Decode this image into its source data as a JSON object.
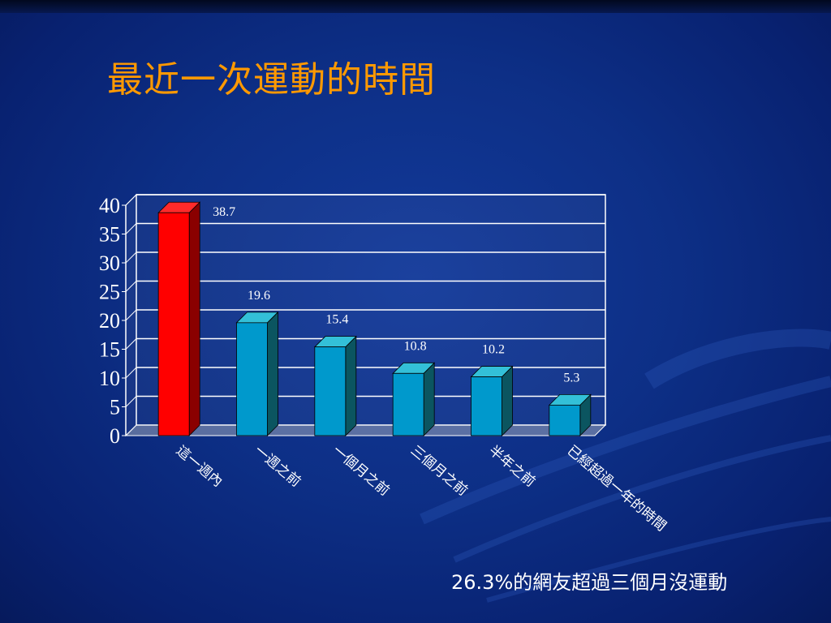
{
  "slide": {
    "title": "最近一次運動的時間",
    "caption": "26.3%的網友超過三個月沒運動"
  },
  "colors": {
    "background": "#0d2f86",
    "title": "#ff9900",
    "highlight_bar": "#ff0000",
    "normal_bar": "#0099cc"
  },
  "chart_data": {
    "type": "bar",
    "title": "",
    "xlabel": "",
    "ylabel": "",
    "ylim": [
      0,
      40
    ],
    "yticks": [
      0,
      5,
      10,
      15,
      20,
      25,
      30,
      35,
      40
    ],
    "categories": [
      "這一週內",
      "一週之前",
      "一個月之前",
      "三個月之前",
      "半年之前",
      "已經超過一年的時間"
    ],
    "values": [
      38.7,
      19.6,
      15.4,
      10.8,
      10.2,
      5.3
    ],
    "data_labels": [
      "38.7",
      "19.6",
      "15.4",
      "10.8",
      "10.2",
      "5.3"
    ],
    "highlight_index": 0,
    "grid": true,
    "style": "3d"
  }
}
